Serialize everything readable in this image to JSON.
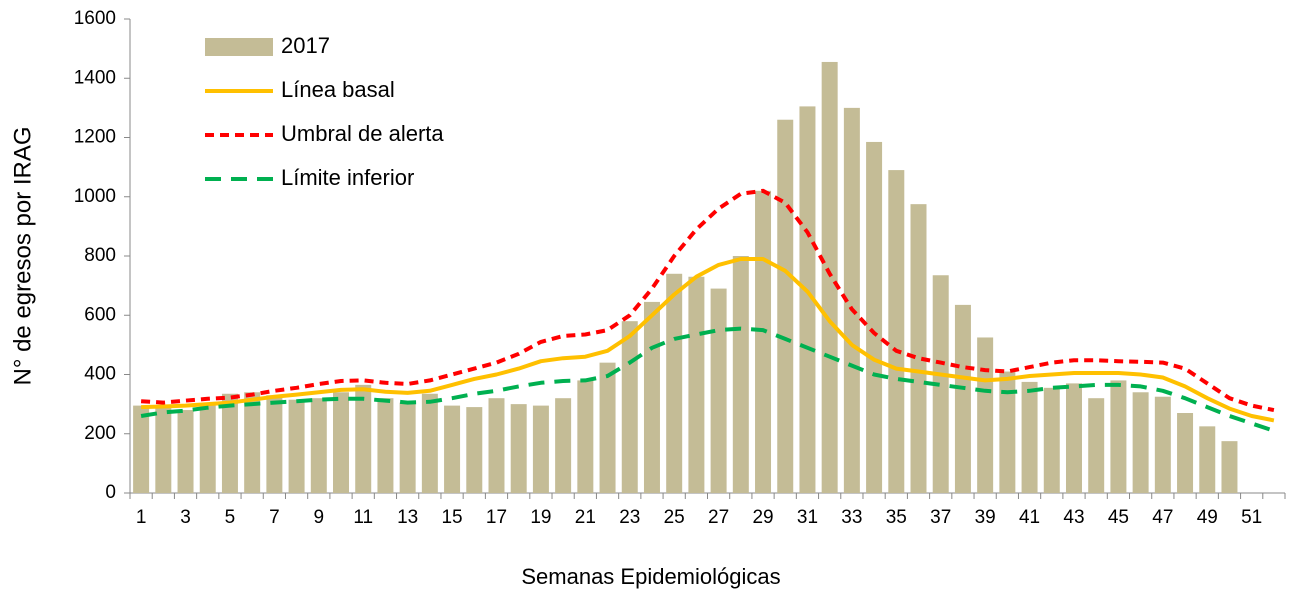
{
  "chart_data": {
    "type": "bar",
    "categories": [
      "1",
      null,
      "3",
      null,
      "5",
      null,
      "7",
      null,
      "9",
      null,
      "11",
      null,
      "13",
      null,
      "15",
      null,
      "17",
      null,
      "19",
      null,
      "21",
      null,
      "23",
      null,
      "25",
      null,
      "27",
      null,
      "29",
      null,
      "31",
      null,
      "33",
      null,
      "35",
      null,
      "37",
      null,
      "39",
      null,
      "41",
      null,
      "43",
      null,
      "45",
      null,
      "47",
      null,
      "49",
      null,
      "51",
      null
    ],
    "series": [
      {
        "name": "2017",
        "type": "bar",
        "color": "#c4bc96",
        "values": [
          295,
          290,
          280,
          300,
          335,
          340,
          330,
          315,
          320,
          340,
          365,
          320,
          305,
          335,
          295,
          290,
          320,
          300,
          295,
          320,
          380,
          440,
          580,
          645,
          740,
          730,
          690,
          800,
          1020,
          1260,
          1305,
          1455,
          1300,
          1185,
          1090,
          975,
          735,
          635,
          525,
          410,
          375,
          355,
          370,
          320,
          380,
          340,
          325,
          270,
          225,
          175,
          null,
          null
        ]
      },
      {
        "name": "Línea basal",
        "type": "line",
        "line_style": "solid",
        "color": "#ffc000",
        "values": [
          290,
          292,
          295,
          300,
          305,
          315,
          325,
          332,
          340,
          348,
          350,
          342,
          338,
          345,
          365,
          385,
          400,
          420,
          445,
          455,
          460,
          480,
          530,
          600,
          670,
          730,
          770,
          790,
          790,
          750,
          680,
          580,
          500,
          450,
          420,
          410,
          400,
          390,
          380,
          385,
          395,
          400,
          405,
          405,
          405,
          400,
          390,
          360,
          320,
          285,
          260,
          245
        ]
      },
      {
        "name": "Umbral de alerta",
        "type": "line",
        "line_style": "short-dash",
        "color": "#ff0000",
        "values": [
          310,
          305,
          312,
          318,
          322,
          332,
          345,
          355,
          368,
          378,
          380,
          372,
          368,
          380,
          400,
          420,
          440,
          470,
          510,
          530,
          535,
          550,
          600,
          690,
          800,
          890,
          960,
          1010,
          1020,
          980,
          880,
          740,
          620,
          540,
          480,
          455,
          440,
          425,
          415,
          410,
          425,
          440,
          448,
          448,
          445,
          443,
          440,
          420,
          370,
          320,
          295,
          280
        ]
      },
      {
        "name": "Límite inferior",
        "type": "line",
        "line_style": "long-dash",
        "color": "#00b050",
        "values": [
          260,
          272,
          278,
          288,
          295,
          300,
          305,
          310,
          315,
          318,
          318,
          312,
          305,
          308,
          320,
          335,
          345,
          360,
          372,
          378,
          380,
          395,
          440,
          490,
          520,
          535,
          550,
          555,
          550,
          520,
          490,
          460,
          430,
          400,
          385,
          375,
          365,
          355,
          345,
          340,
          345,
          355,
          360,
          365,
          365,
          360,
          345,
          320,
          290,
          260,
          235,
          210
        ]
      }
    ],
    "ylim": [
      0,
      1600
    ],
    "yticks": [
      0,
      200,
      400,
      600,
      800,
      1000,
      1200,
      1400,
      1600
    ],
    "ylabel": "N° de egresos por IRAG",
    "xlabel": "Semanas Epidemiológicas",
    "grid": false,
    "legend": "upper-left"
  }
}
